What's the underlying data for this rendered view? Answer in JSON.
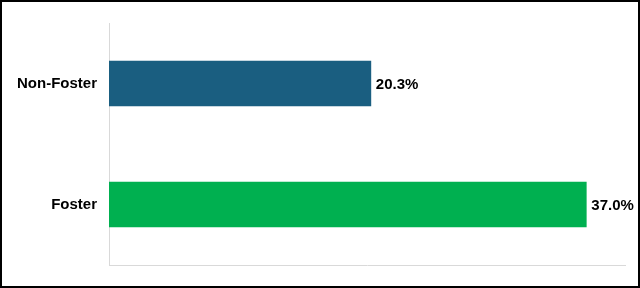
{
  "chart_data": {
    "type": "bar",
    "orientation": "horizontal",
    "categories": [
      "Non-Foster",
      "Foster"
    ],
    "values": [
      20.3,
      37.0
    ],
    "value_labels": [
      "20.3%",
      "37.0%"
    ],
    "colors": [
      "#1a5e80",
      "#00b050"
    ],
    "xlim": [
      0,
      40
    ],
    "grid": false,
    "data_labels": true,
    "tick_labels": "y"
  }
}
